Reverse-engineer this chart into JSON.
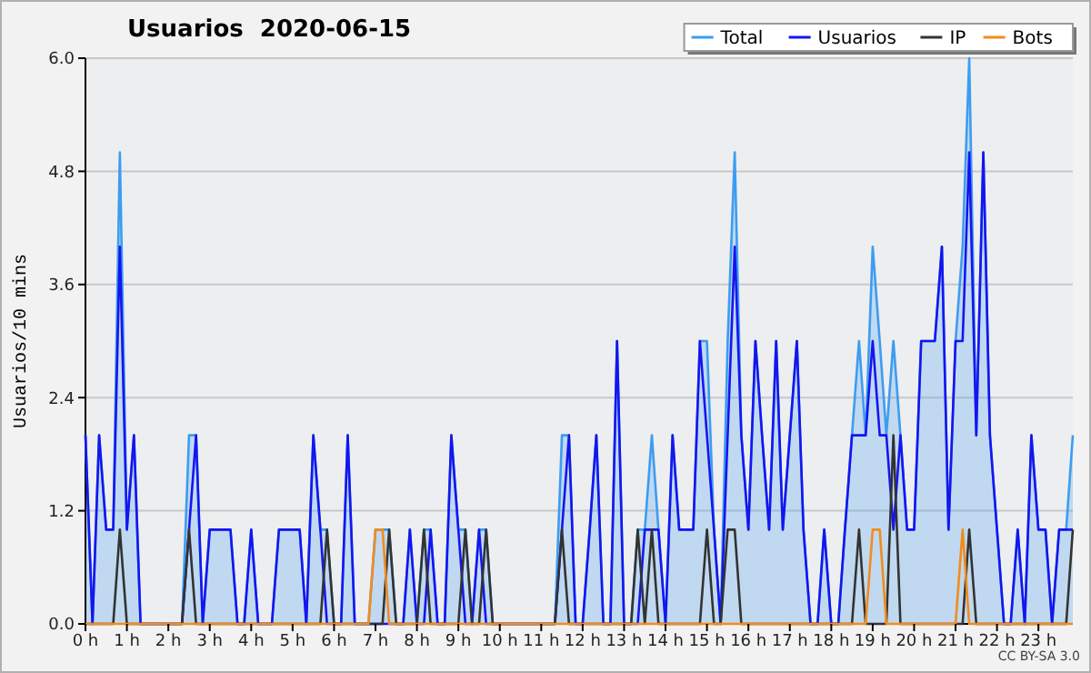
{
  "chart_data": {
    "type": "line",
    "title": "Usuarios  2020-06-15",
    "ylabel": "Usuarios/10 mins",
    "annotations": [
      "CC BY-SA 3.0"
    ],
    "x": [
      0,
      0.17,
      0.33,
      0.5,
      0.67,
      0.83,
      1,
      1.17,
      1.33,
      1.5,
      1.67,
      1.83,
      2,
      2.17,
      2.33,
      2.5,
      2.67,
      2.83,
      3,
      3.17,
      3.33,
      3.5,
      3.67,
      3.83,
      4,
      4.17,
      4.33,
      4.5,
      4.67,
      4.83,
      5,
      5.17,
      5.33,
      5.5,
      5.67,
      5.83,
      6,
      6.17,
      6.33,
      6.5,
      6.67,
      6.83,
      7,
      7.17,
      7.33,
      7.5,
      7.67,
      7.83,
      8,
      8.17,
      8.33,
      8.5,
      8.67,
      8.83,
      9,
      9.17,
      9.33,
      9.5,
      9.67,
      9.83,
      10,
      10.17,
      10.33,
      10.5,
      10.67,
      10.83,
      11,
      11.17,
      11.33,
      11.5,
      11.67,
      11.83,
      12,
      12.17,
      12.33,
      12.5,
      12.67,
      12.83,
      13,
      13.17,
      13.33,
      13.5,
      13.67,
      13.83,
      14,
      14.17,
      14.33,
      14.5,
      14.67,
      14.83,
      15,
      15.17,
      15.33,
      15.5,
      15.67,
      15.83,
      16,
      16.17,
      16.33,
      16.5,
      16.67,
      16.83,
      17,
      17.17,
      17.33,
      17.5,
      17.67,
      17.83,
      18,
      18.17,
      18.33,
      18.5,
      18.67,
      18.83,
      19,
      19.17,
      19.33,
      19.5,
      19.67,
      19.83,
      20,
      20.17,
      20.33,
      20.5,
      20.67,
      20.83,
      21,
      21.17,
      21.33,
      21.5,
      21.67,
      21.83,
      22,
      22.17,
      22.33,
      22.5,
      22.67,
      22.83,
      23,
      23.17,
      23.33,
      23.5,
      23.67,
      23.83
    ],
    "series": [
      {
        "name": "Total",
        "type": "area",
        "color": "#3d9cf0",
        "values": [
          2,
          0,
          2,
          1,
          1,
          5,
          1,
          2,
          0,
          0,
          0,
          0,
          0,
          0,
          0,
          2,
          2,
          0,
          1,
          1,
          1,
          1,
          0,
          0,
          1,
          0,
          0,
          0,
          1,
          1,
          1,
          1,
          0,
          2,
          1,
          1,
          0,
          0,
          2,
          0,
          0,
          0,
          1,
          1,
          1,
          0,
          0,
          1,
          0,
          1,
          1,
          0,
          0,
          2,
          1,
          1,
          0,
          1,
          1,
          0,
          0,
          0,
          0,
          0,
          0,
          0,
          0,
          0,
          0,
          2,
          2,
          0,
          0,
          1,
          2,
          0,
          0,
          3,
          0,
          0,
          1,
          1,
          2,
          1,
          0,
          2,
          1,
          1,
          1,
          3,
          3,
          1,
          0,
          3,
          5,
          2,
          1,
          3,
          2,
          1,
          3,
          1,
          2,
          3,
          1,
          0,
          0,
          1,
          0,
          0,
          1,
          2,
          3,
          2,
          4,
          3,
          2,
          3,
          2,
          1,
          1,
          3,
          3,
          3,
          4,
          1,
          3,
          4,
          6,
          2,
          5,
          2,
          1,
          0,
          0,
          1,
          0,
          2,
          1,
          1,
          0,
          1,
          1,
          2
        ]
      },
      {
        "name": "Usuarios",
        "color": "#1515f0",
        "values": [
          2,
          0,
          2,
          1,
          1,
          4,
          1,
          2,
          0,
          0,
          0,
          0,
          0,
          0,
          0,
          1,
          2,
          0,
          1,
          1,
          1,
          1,
          0,
          0,
          1,
          0,
          0,
          0,
          1,
          1,
          1,
          1,
          0,
          2,
          1,
          0,
          0,
          0,
          2,
          0,
          0,
          0,
          0,
          0,
          0,
          0,
          0,
          1,
          0,
          0,
          1,
          0,
          0,
          2,
          1,
          0,
          0,
          1,
          0,
          0,
          0,
          0,
          0,
          0,
          0,
          0,
          0,
          0,
          0,
          1,
          2,
          0,
          0,
          1,
          2,
          0,
          0,
          3,
          0,
          0,
          0,
          1,
          1,
          1,
          0,
          2,
          1,
          1,
          1,
          3,
          2,
          1,
          0,
          2,
          4,
          2,
          1,
          3,
          2,
          1,
          3,
          1,
          2,
          3,
          1,
          0,
          0,
          1,
          0,
          0,
          1,
          2,
          2,
          2,
          3,
          2,
          2,
          1,
          2,
          1,
          1,
          3,
          3,
          3,
          4,
          1,
          3,
          3,
          5,
          2,
          5,
          2,
          1,
          0,
          0,
          1,
          0,
          2,
          1,
          1,
          0,
          1,
          1,
          1
        ]
      },
      {
        "name": "IP",
        "color": "#333333",
        "values": [
          0,
          0,
          0,
          0,
          0,
          1,
          0,
          0,
          0,
          0,
          0,
          0,
          0,
          0,
          0,
          1,
          0,
          0,
          0,
          0,
          0,
          0,
          0,
          0,
          0,
          0,
          0,
          0,
          0,
          0,
          0,
          0,
          0,
          0,
          0,
          1,
          0,
          0,
          0,
          0,
          0,
          0,
          0,
          0,
          1,
          0,
          0,
          0,
          0,
          1,
          0,
          0,
          0,
          0,
          0,
          1,
          0,
          0,
          1,
          0,
          0,
          0,
          0,
          0,
          0,
          0,
          0,
          0,
          0,
          1,
          0,
          0,
          0,
          0,
          0,
          0,
          0,
          0,
          0,
          0,
          1,
          0,
          1,
          0,
          0,
          0,
          0,
          0,
          0,
          0,
          1,
          0,
          0,
          1,
          1,
          0,
          0,
          0,
          0,
          0,
          0,
          0,
          0,
          0,
          0,
          0,
          0,
          0,
          0,
          0,
          0,
          0,
          1,
          0,
          0,
          0,
          0,
          2,
          0,
          0,
          0,
          0,
          0,
          0,
          0,
          0,
          0,
          0,
          1,
          0,
          0,
          0,
          0,
          0,
          0,
          0,
          0,
          0,
          0,
          0,
          0,
          0,
          0,
          1
        ]
      },
      {
        "name": "Bots",
        "color": "#f28c1c",
        "values": [
          0,
          0,
          0,
          0,
          0,
          0,
          0,
          0,
          0,
          0,
          0,
          0,
          0,
          0,
          0,
          0,
          0,
          0,
          0,
          0,
          0,
          0,
          0,
          0,
          0,
          0,
          0,
          0,
          0,
          0,
          0,
          0,
          0,
          0,
          0,
          0,
          0,
          0,
          0,
          0,
          0,
          0,
          1,
          1,
          0,
          0,
          0,
          0,
          0,
          0,
          0,
          0,
          0,
          0,
          0,
          0,
          0,
          0,
          0,
          0,
          0,
          0,
          0,
          0,
          0,
          0,
          0,
          0,
          0,
          0,
          0,
          0,
          0,
          0,
          0,
          0,
          0,
          0,
          0,
          0,
          0,
          0,
          0,
          0,
          0,
          0,
          0,
          0,
          0,
          0,
          0,
          0,
          0,
          0,
          0,
          0,
          0,
          0,
          0,
          0,
          0,
          0,
          0,
          0,
          0,
          0,
          0,
          0,
          0,
          0,
          0,
          0,
          0,
          0,
          1,
          1,
          0,
          0,
          0,
          0,
          0,
          0,
          0,
          0,
          0,
          0,
          0,
          1,
          0,
          0,
          0,
          0,
          0,
          0,
          0,
          0,
          0,
          0,
          0,
          0,
          0,
          0,
          0,
          0
        ]
      }
    ],
    "xlim": [
      0,
      23.83
    ],
    "xticks": [
      {
        "value": 0,
        "label": "0 h"
      },
      {
        "value": 1,
        "label": "1 h"
      },
      {
        "value": 2,
        "label": "2 h"
      },
      {
        "value": 3,
        "label": "3 h"
      },
      {
        "value": 4,
        "label": "4 h"
      },
      {
        "value": 5,
        "label": "5 h"
      },
      {
        "value": 6,
        "label": "6 h"
      },
      {
        "value": 7,
        "label": "7 h"
      },
      {
        "value": 8,
        "label": "8 h"
      },
      {
        "value": 9,
        "label": "9 h"
      },
      {
        "value": 10,
        "label": "10 h"
      },
      {
        "value": 11,
        "label": "11 h"
      },
      {
        "value": 12,
        "label": "12 h"
      },
      {
        "value": 13,
        "label": "13 h"
      },
      {
        "value": 14,
        "label": "14 h"
      },
      {
        "value": 15,
        "label": "15 h"
      },
      {
        "value": 16,
        "label": "16 h"
      },
      {
        "value": 17,
        "label": "17 h"
      },
      {
        "value": 18,
        "label": "18 h"
      },
      {
        "value": 19,
        "label": "19 h"
      },
      {
        "value": 20,
        "label": "20 h"
      },
      {
        "value": 21,
        "label": "21 h"
      },
      {
        "value": 22,
        "label": "22 h"
      },
      {
        "value": 23,
        "label": "23 h"
      }
    ],
    "ylim": [
      0,
      6
    ],
    "yticks": [
      {
        "value": 0,
        "label": "0.0"
      },
      1.2,
      2.4,
      3.6,
      4.8,
      {
        "value": 6,
        "label": "6.0"
      }
    ],
    "grid": "y",
    "legend": "top right",
    "line_style": "solid",
    "marker": "none"
  }
}
